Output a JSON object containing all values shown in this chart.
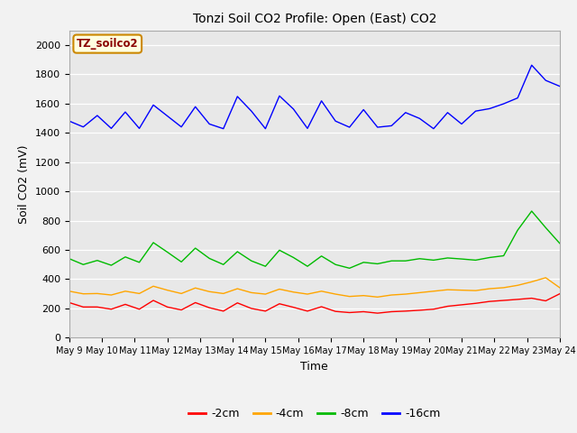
{
  "title": "Tonzi Soil CO2 Profile: Open (East) CO2",
  "ylabel": "Soil CO2 (mV)",
  "xlabel": "Time",
  "dataset_label": "TZ_soilco2",
  "plot_bg_color": "#e8e8e8",
  "fig_bg_color": "#f2f2f2",
  "ylim": [
    0,
    2100
  ],
  "yticks": [
    0,
    200,
    400,
    600,
    800,
    1000,
    1200,
    1400,
    1600,
    1800,
    2000
  ],
  "x_start_day": 9,
  "x_end_day": 24,
  "x_tick_days": [
    9,
    10,
    11,
    12,
    13,
    14,
    15,
    16,
    17,
    18,
    19,
    20,
    21,
    22,
    23,
    24
  ],
  "series": {
    "neg2cm": {
      "color": "#ff0000",
      "label": "-2cm",
      "data": [
        240,
        210,
        210,
        195,
        228,
        195,
        255,
        210,
        190,
        240,
        205,
        182,
        238,
        200,
        182,
        232,
        208,
        182,
        212,
        180,
        172,
        178,
        168,
        178,
        182,
        188,
        195,
        215,
        225,
        235,
        248,
        255,
        262,
        270,
        252,
        300
      ]
    },
    "neg4cm": {
      "color": "#ffa500",
      "label": "-4cm",
      "data": [
        318,
        300,
        302,
        292,
        318,
        302,
        352,
        325,
        302,
        340,
        315,
        302,
        335,
        308,
        298,
        332,
        312,
        298,
        318,
        298,
        282,
        288,
        278,
        292,
        298,
        308,
        318,
        328,
        325,
        322,
        335,
        342,
        358,
        382,
        410,
        342
      ]
    },
    "neg8cm": {
      "color": "#00bb00",
      "label": "-8cm",
      "data": [
        540,
        500,
        528,
        495,
        552,
        515,
        650,
        585,
        518,
        612,
        542,
        500,
        588,
        525,
        488,
        598,
        548,
        488,
        558,
        500,
        475,
        515,
        505,
        525,
        525,
        540,
        530,
        545,
        538,
        530,
        548,
        560,
        735,
        865,
        752,
        645
      ]
    },
    "neg16cm": {
      "color": "#0000ff",
      "label": "-16cm",
      "data": [
        1480,
        1440,
        1518,
        1430,
        1542,
        1430,
        1590,
        1515,
        1440,
        1578,
        1460,
        1428,
        1648,
        1548,
        1428,
        1652,
        1562,
        1430,
        1618,
        1480,
        1438,
        1558,
        1438,
        1448,
        1538,
        1498,
        1428,
        1538,
        1460,
        1548,
        1565,
        1598,
        1638,
        1862,
        1758,
        1718
      ]
    }
  }
}
